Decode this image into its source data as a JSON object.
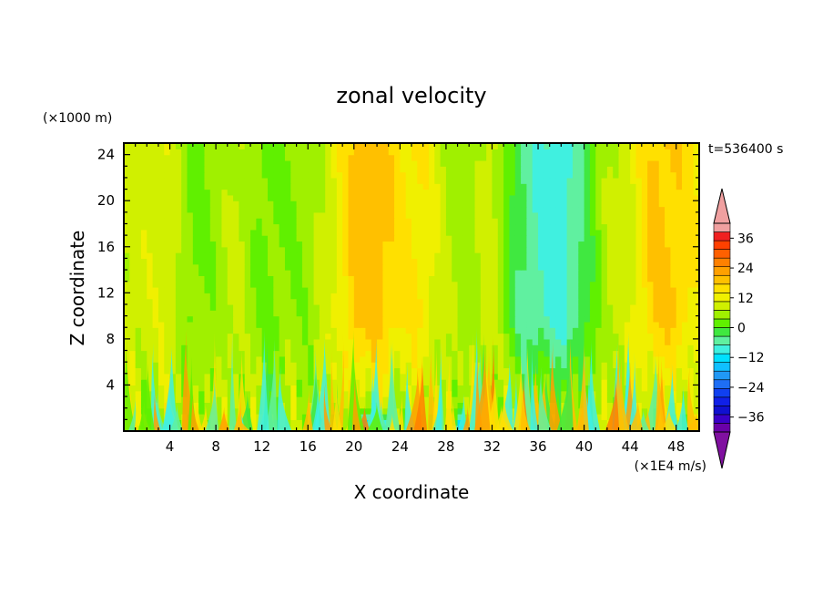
{
  "chart_data": {
    "type": "heatmap",
    "title": "zonal velocity",
    "xlabel": "X coordinate",
    "ylabel": "Z coordinate",
    "x_unit_label": "(×1E4 m/s)",
    "y_unit_label": "(×1000 m)",
    "time_label": "t=536400 s",
    "xlim": [
      0,
      50
    ],
    "ylim": [
      0,
      25
    ],
    "x_ticks": [
      4,
      8,
      12,
      16,
      20,
      24,
      28,
      32,
      36,
      40,
      44,
      48
    ],
    "y_ticks": [
      4,
      8,
      12,
      16,
      20,
      24
    ],
    "colorbar": {
      "levels": [
        -42,
        -39,
        -36,
        -33,
        -30,
        -27,
        -24,
        -21,
        -18,
        -15,
        -12,
        -9,
        -6,
        -3,
        0,
        3,
        6,
        9,
        12,
        15,
        18,
        21,
        24,
        27,
        30,
        33,
        36,
        39,
        42
      ],
      "tick_labels": [
        36,
        24,
        12,
        0,
        -12,
        -24,
        -36
      ],
      "extend": "both",
      "colors": [
        "#6a00a8",
        "#3a00c8",
        "#1010d0",
        "#1020e8",
        "#1040f0",
        "#1e6ef5",
        "#2098f5",
        "#10c0ff",
        "#00e0ff",
        "#40f0e0",
        "#60f0a0",
        "#40e840",
        "#60f000",
        "#a0f000",
        "#d0f000",
        "#f0f000",
        "#ffe000",
        "#ffc000",
        "#ffa000",
        "#ff8000",
        "#ff6000",
        "#ff4000",
        "#f02020",
        "#f0a0a0"
      ],
      "under_color": "#8010a0",
      "over_color": "#f0a0a0"
    },
    "column_profile": {
      "x": [
        0,
        2,
        4,
        6,
        8,
        10,
        12,
        14,
        16,
        18,
        20,
        22,
        24,
        26,
        28,
        30,
        32,
        34,
        36,
        38,
        40,
        42,
        44,
        46,
        48,
        50
      ],
      "upper_value": [
        1,
        2,
        2,
        -4,
        -2,
        1,
        -4,
        -3,
        -2,
        2,
        10,
        11,
        7,
        6,
        0,
        -2,
        2,
        -8,
        -12,
        -14,
        -8,
        0,
        2,
        10,
        9,
        5
      ]
    }
  }
}
